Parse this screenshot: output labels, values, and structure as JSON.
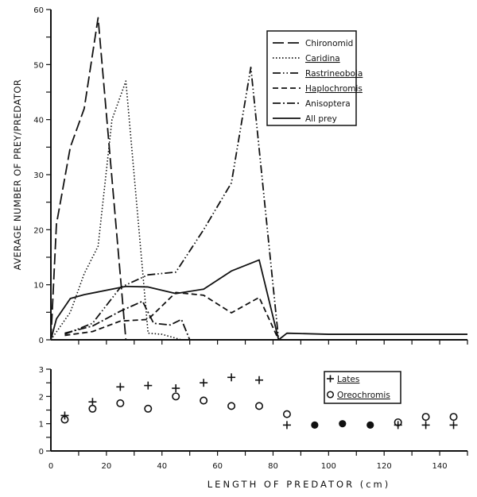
{
  "chart_data": [
    {
      "type": "line",
      "ylabel": "AVERAGE NUMBER OF PREY/PREDATOR",
      "xlim": [
        0,
        150
      ],
      "ylim": [
        0,
        60
      ],
      "yticks": [
        "0",
        "10",
        "20",
        "30",
        "40",
        "50",
        "60"
      ],
      "grid": false,
      "legend_position": "top-right",
      "series": [
        {
          "name": "Chironomid",
          "style": "long-dash",
          "underlined": false,
          "x": [
            0,
            2,
            7,
            12,
            17,
            27
          ],
          "y": [
            0,
            21,
            35,
            42,
            58.5,
            0
          ]
        },
        {
          "name": "Caridina",
          "style": "dotted",
          "underlined": true,
          "x": [
            0,
            7,
            12,
            17,
            22,
            27,
            35,
            40,
            47
          ],
          "y": [
            0,
            5,
            12,
            17,
            40,
            47,
            1.2,
            1,
            0
          ]
        },
        {
          "name": "Rastrineobola",
          "style": "dash-dot-dot",
          "underlined": true,
          "x": [
            5,
            15,
            25,
            35,
            45,
            55,
            65,
            72,
            82
          ],
          "y": [
            1,
            3,
            9.5,
            11.8,
            12.3,
            20,
            28.5,
            49.5,
            0
          ]
        },
        {
          "name": "Haplochromis",
          "style": "short-dash",
          "underlined": true,
          "x": [
            5,
            15,
            25,
            35,
            45,
            55,
            65,
            75,
            82
          ],
          "y": [
            0.8,
            1.5,
            3.4,
            3.7,
            8.6,
            8.1,
            4.9,
            7.7,
            0
          ]
        },
        {
          "name": "Anisoptera",
          "style": "dash-dot",
          "underlined": false,
          "x": [
            5,
            15,
            25,
            33,
            37,
            43,
            47,
            50
          ],
          "y": [
            1.2,
            2.5,
            5.2,
            7,
            3,
            2.7,
            3.7,
            0
          ]
        },
        {
          "name": "All prey",
          "style": "solid",
          "underlined": false,
          "x": [
            0,
            2,
            7,
            12,
            17,
            27,
            35,
            45,
            55,
            65,
            75,
            82,
            85,
            100,
            150
          ],
          "y": [
            0,
            3.8,
            7.5,
            8.2,
            8.7,
            9.7,
            9.6,
            8.4,
            9.2,
            12.5,
            14.5,
            0,
            1.2,
            1,
            1
          ]
        }
      ]
    },
    {
      "type": "scatter",
      "xlabel": "LENGTH OF PREDATOR (cm)",
      "xlim": [
        0,
        150
      ],
      "ylim": [
        0,
        3
      ],
      "xticks": [
        "0",
        "20",
        "40",
        "60",
        "80",
        "100",
        "120",
        "140"
      ],
      "yticks": [
        "0",
        "1",
        "2",
        "3"
      ],
      "grid": false,
      "legend_position": "top-right",
      "series": [
        {
          "name": "Lates",
          "marker": "plus",
          "x": [
            5,
            15,
            25,
            35,
            45,
            55,
            65,
            75,
            85,
            125,
            135,
            145
          ],
          "y": [
            1.3,
            1.8,
            2.35,
            2.4,
            2.3,
            2.5,
            2.7,
            2.6,
            0.95,
            0.95,
            0.95,
            0.95
          ]
        },
        {
          "name": "Oreochromis",
          "marker": "open-circle",
          "x": [
            5,
            15,
            25,
            35,
            45,
            55,
            65,
            75,
            85,
            125,
            135,
            145
          ],
          "y": [
            1.15,
            1.55,
            1.75,
            1.55,
            2.0,
            1.85,
            1.65,
            1.65,
            1.35,
            1.05,
            1.25,
            1.25
          ]
        },
        {
          "marker": "filled-circle",
          "x": [
            95,
            105,
            115
          ],
          "y": [
            0.95,
            1.0,
            0.95
          ]
        }
      ]
    }
  ]
}
